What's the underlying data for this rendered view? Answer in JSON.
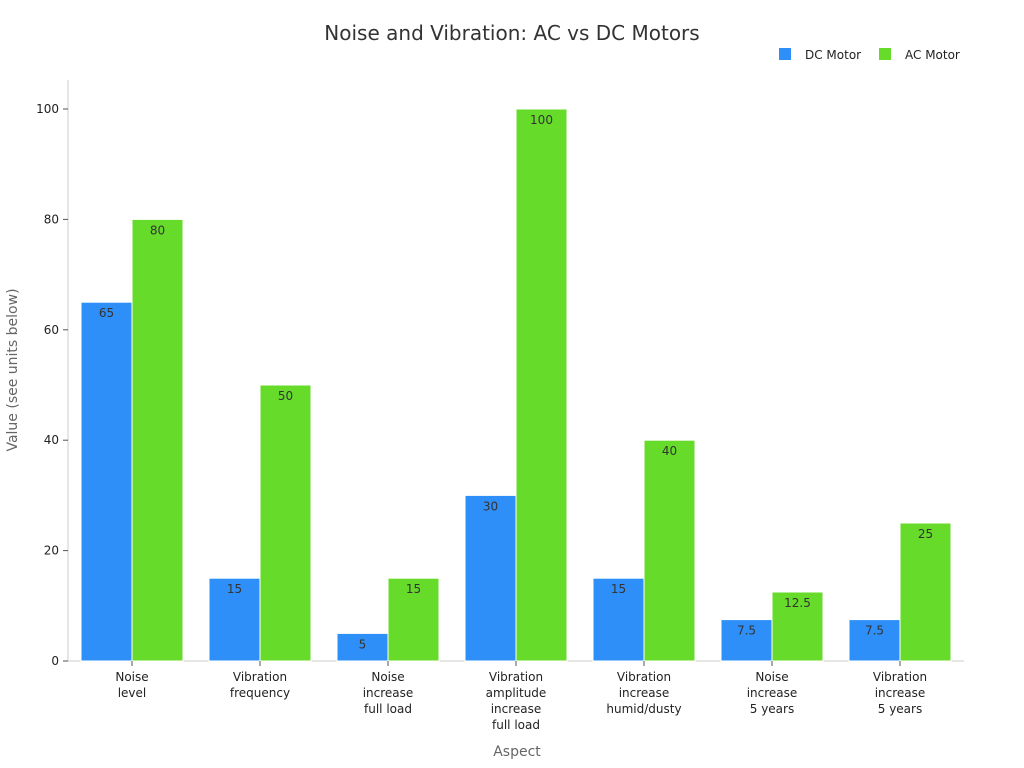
{
  "chart_data": {
    "type": "bar",
    "title": "Noise and Vibration: AC vs DC Motors",
    "xlabel": "Aspect",
    "ylabel": "Value (see units below)",
    "ylim": [
      0,
      105
    ],
    "yticks": [
      0,
      20,
      40,
      60,
      80,
      100
    ],
    "grid": false,
    "legend_position": "top-right",
    "categories": [
      [
        "Noise",
        "level"
      ],
      [
        "Vibration",
        "frequency"
      ],
      [
        "Noise",
        "increase",
        "full load"
      ],
      [
        "Vibration",
        "amplitude",
        "increase",
        "full load"
      ],
      [
        "Vibration",
        "increase",
        "humid/dusty"
      ],
      [
        "Noise",
        "increase",
        "5 years"
      ],
      [
        "Vibration",
        "increase",
        "5 years"
      ]
    ],
    "series": [
      {
        "name": "DC Motor",
        "color": "#2e8ff8",
        "values": [
          65,
          15,
          5,
          30,
          15,
          7.5,
          7.5
        ]
      },
      {
        "name": "AC Motor",
        "color": "#66db2a",
        "values": [
          80,
          50,
          15,
          100,
          40,
          12.5,
          25
        ]
      }
    ]
  }
}
